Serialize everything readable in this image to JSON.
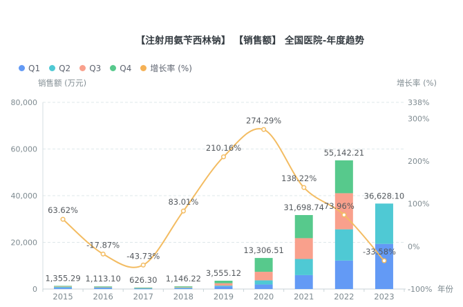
{
  "title": "【注射用氨苄西林钠】 【销售额】 全国医院-年度趋势",
  "legend": {
    "items": [
      {
        "label": "Q1",
        "color": "#639af5"
      },
      {
        "label": "Q2",
        "color": "#4fc9d4"
      },
      {
        "label": "Q3",
        "color": "#f9a08c"
      },
      {
        "label": "Q4",
        "color": "#57c98c"
      },
      {
        "label": "增长率 (%)",
        "color": "#f5b155"
      }
    ]
  },
  "axes": {
    "left_name": "销售额 (万元)",
    "right_name": "增长率 (%)",
    "x_name": "年份",
    "left_tick_values": [
      0,
      20000,
      40000,
      60000,
      80000
    ],
    "left_tick_labels": [
      "0",
      "20,000",
      "40,000",
      "60,000",
      "80,000"
    ],
    "right_tick_values": [
      -100,
      0,
      100,
      200,
      300,
      338
    ],
    "right_tick_labels": [
      "-100%",
      "0%",
      "100%",
      "200%",
      "300%",
      "338%"
    ]
  },
  "chart_data": {
    "type": "bar",
    "subtype": "stacked-bars-with-growth-line",
    "title": "【注射用氨苄西林钠】 【销售额】 全国医院-年度趋势",
    "categories": [
      "2015",
      "2016",
      "2017",
      "2018",
      "2019",
      "2020",
      "2021",
      "2022",
      "2023"
    ],
    "series": [
      {
        "name": "Q1",
        "type": "bar",
        "stack": "sales",
        "color": "#639af5",
        "values": [
          550,
          450,
          160,
          300,
          1150,
          1950,
          5950,
          12200,
          19340
        ]
      },
      {
        "name": "Q2",
        "type": "bar",
        "stack": "sales",
        "color": "#4fc9d4",
        "values": [
          350,
          280,
          230,
          250,
          300,
          1780,
          6930,
          13390,
          17288.1
        ]
      },
      {
        "name": "Q3",
        "type": "bar",
        "stack": "sales",
        "color": "#f9a08c",
        "values": [
          200,
          200,
          130,
          250,
          1030,
          3650,
          8920,
          15470,
          0
        ]
      },
      {
        "name": "Q4",
        "type": "bar",
        "stack": "sales",
        "color": "#57c98c",
        "values": [
          255.29,
          183.1,
          106.3,
          346.22,
          1075.12,
          5926.51,
          9898.74,
          14082.21,
          0
        ]
      },
      {
        "name": "增长率 (%)",
        "type": "line",
        "axis": "right",
        "color": "#f3bc62",
        "values": [
          63.62,
          -17.87,
          -43.73,
          83.01,
          210.16,
          274.29,
          138.22,
          73.96,
          -33.58
        ]
      }
    ],
    "stack_totals": [
      1355.29,
      1113.1,
      626.3,
      1146.22,
      3555.12,
      13306.51,
      31698.74,
      55142.21,
      36628.1
    ],
    "total_labels": [
      "1,355.29",
      "1,113.10",
      "626.30",
      "1,146.22",
      "3,555.12",
      "13,306.51",
      "31,698.74",
      "55,142.21",
      "36,628.10"
    ],
    "growth_labels": [
      "63.62%",
      "-17.87%",
      "-43.73%",
      "83.01%",
      "210.16%",
      "274.29%",
      "138.22%",
      "73.96%",
      "-33.58%"
    ],
    "xlabel": "年份",
    "ylabel_left": "销售额 (万元)",
    "ylabel_right": "增长率 (%)",
    "ylim_left": [
      0,
      80000
    ],
    "ylim_right": [
      -100,
      338
    ],
    "grid": "dashed-horizontal",
    "legend_position": "top-left"
  }
}
